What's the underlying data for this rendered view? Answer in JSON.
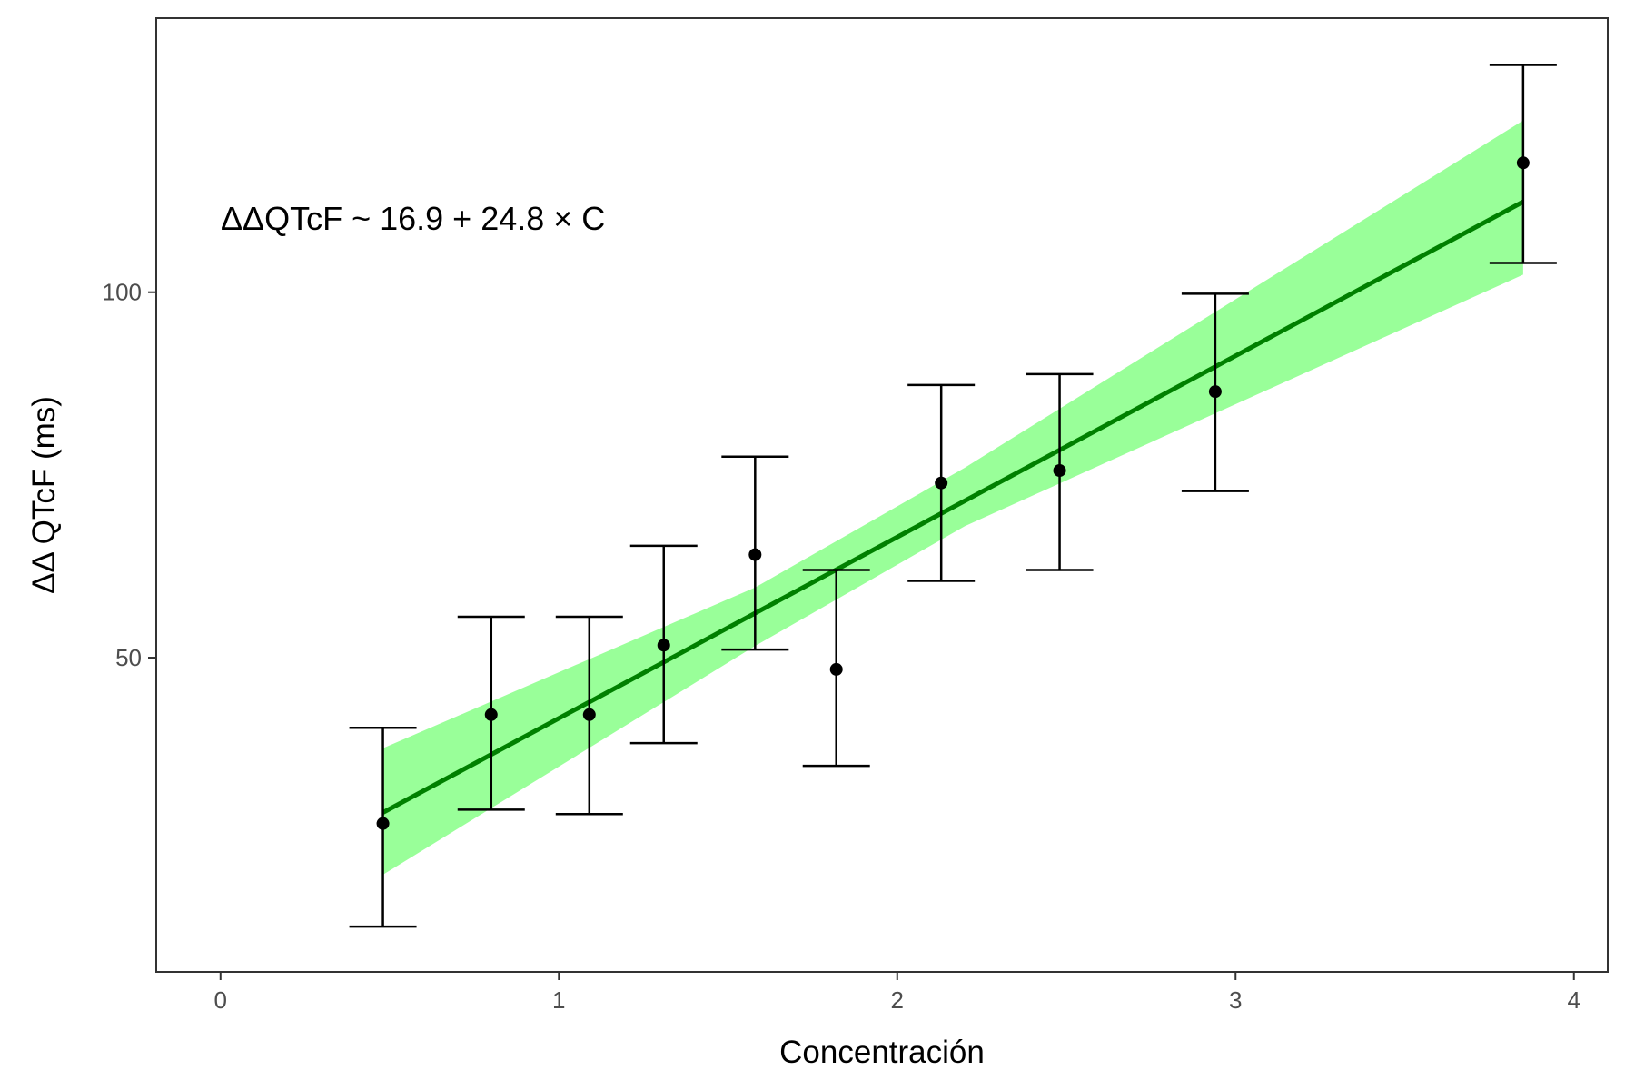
{
  "chart_data": {
    "type": "scatter",
    "xlabel": "Concentración",
    "ylabel": "ΔΔ QTcF (ms)",
    "annotation": "ΔΔQTcF ~ 16.9 + 24.8 × C",
    "xlim": [
      -0.19,
      4.1
    ],
    "ylim": [
      7,
      137.5
    ],
    "x_ticks": [
      0,
      1,
      2,
      3,
      4
    ],
    "y_ticks": [
      50,
      100
    ],
    "grid": false,
    "colors": {
      "points": "#000000",
      "errorbars": "#000000",
      "fit_line": "#008000",
      "ribbon": "#00ff00",
      "ribbon_opacity": 0.4,
      "panel_border": "#333333"
    },
    "points": [
      {
        "x": 0.48,
        "y": 27.3,
        "ymin": 13.2,
        "ymax": 40.4
      },
      {
        "x": 0.8,
        "y": 42.2,
        "ymin": 29.2,
        "ymax": 55.6
      },
      {
        "x": 1.09,
        "y": 42.2,
        "ymin": 28.6,
        "ymax": 55.6
      },
      {
        "x": 1.31,
        "y": 51.7,
        "ymin": 38.3,
        "ymax": 65.3
      },
      {
        "x": 1.58,
        "y": 64.1,
        "ymin": 51.1,
        "ymax": 77.5
      },
      {
        "x": 1.82,
        "y": 48.4,
        "ymin": 35.2,
        "ymax": 62.0
      },
      {
        "x": 2.13,
        "y": 73.9,
        "ymin": 60.5,
        "ymax": 87.3
      },
      {
        "x": 2.48,
        "y": 75.6,
        "ymin": 62.0,
        "ymax": 88.8
      },
      {
        "x": 2.94,
        "y": 86.4,
        "ymin": 72.8,
        "ymax": 99.8
      },
      {
        "x": 3.85,
        "y": 117.7,
        "ymin": 104.0,
        "ymax": 131.1
      }
    ],
    "fit": {
      "intercept": 16.9,
      "slope": 24.8,
      "x_range": [
        0.48,
        3.85
      ],
      "ribbon": [
        {
          "x": 0.48,
          "lower": 20.3,
          "upper": 37.6
        },
        {
          "x": 1.58,
          "lower": 51.6,
          "upper": 59.6
        },
        {
          "x": 2.2,
          "lower": 68.0,
          "upper": 76.0
        },
        {
          "x": 3.85,
          "lower": 102.4,
          "upper": 123.5
        }
      ]
    }
  }
}
